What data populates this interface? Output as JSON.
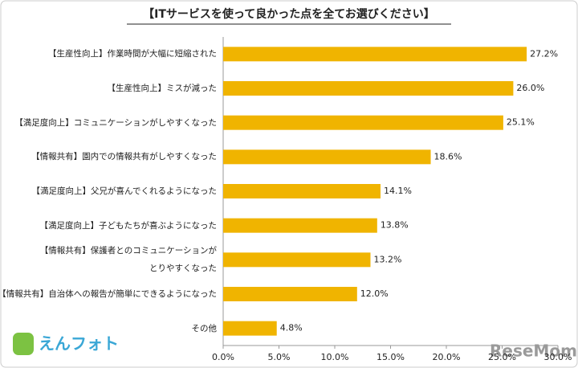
{
  "chart_data": {
    "type": "barh",
    "title": "【ITサービスを使って良かった点を全てお選びください】",
    "categories": [
      "【生産性向上】作業時間が大幅に短縮された",
      "【生産性向上】ミスが減った",
      "【満足度向上】コミュニケーションがしやすくなった",
      "【情報共有】園内での情報共有がしやすくなった",
      "【満足度向上】父兄が喜んでくれるようになった",
      "【満足度向上】子どもたちが喜ぶようになった",
      "【情報共有】保護者とのコミュニケーションが\nとりやすくなった",
      "【情報共有】自治体への報告が簡単にできるようになった",
      "その他"
    ],
    "values": [
      27.2,
      26.0,
      25.1,
      18.6,
      14.1,
      13.8,
      13.2,
      12.0,
      4.8
    ],
    "value_labels": [
      "27.2%",
      "26.0%",
      "25.1%",
      "18.6%",
      "14.1%",
      "13.8%",
      "13.2%",
      "12.0%",
      "4.8%"
    ],
    "color": "#f0b400",
    "xlim": [
      0,
      30
    ],
    "xticks": [
      {
        "value": 0,
        "label": "0.0%"
      },
      {
        "value": 5,
        "label": "5.0%"
      },
      {
        "value": 10,
        "label": "10.0%"
      },
      {
        "value": 15,
        "label": "15.0%"
      },
      {
        "value": 20,
        "label": "20.0%"
      },
      {
        "value": 25,
        "label": "25.0%"
      },
      {
        "value": 30,
        "label": "30.0%"
      }
    ],
    "grid": false,
    "annotations": [
      "えんフォト",
      "ReseMom"
    ]
  }
}
